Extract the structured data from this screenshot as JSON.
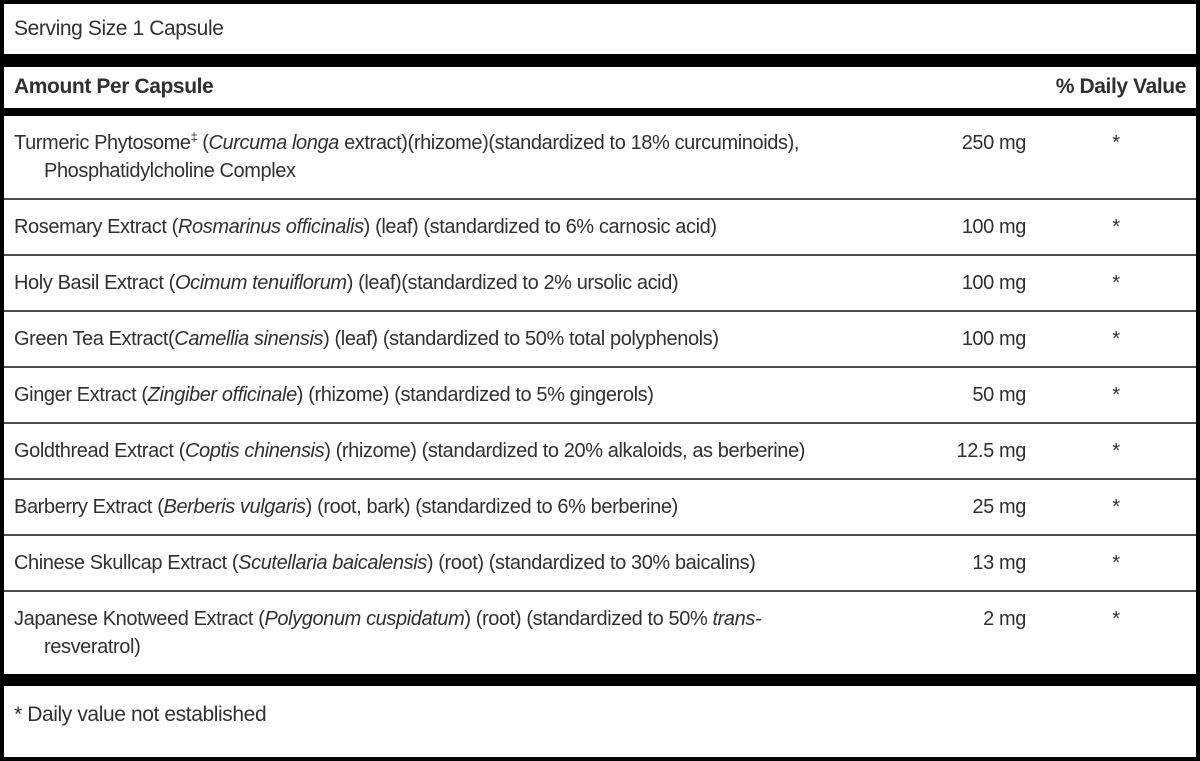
{
  "label": {
    "serving_size": "Serving Size 1 Capsule",
    "header": {
      "amount_col": "Amount Per Capsule",
      "dv_col": "% Daily Value"
    },
    "footnote": "* Daily value not established",
    "colors": {
      "text": "#303030",
      "bar": "#000000",
      "separator": "#4d4d4d"
    },
    "rows": [
      {
        "name_parts": [
          {
            "text": "Turmeric Phytosome"
          },
          {
            "text": "‡",
            "sup": true
          },
          {
            "text": " ("
          },
          {
            "text": "Curcuma longa",
            "italic": true
          },
          {
            "text": " extract)(rhizome)(standardized to 18% curcuminoids),"
          },
          {
            "br": true
          },
          {
            "text": "Phosphatidylcholine Complex"
          }
        ],
        "amount": "250 mg",
        "daily_value": "*"
      },
      {
        "name_parts": [
          {
            "text": "Rosemary Extract ("
          },
          {
            "text": "Rosmarinus officinalis",
            "italic": true
          },
          {
            "text": ") (leaf) (standardized to 6% carnosic acid)"
          }
        ],
        "amount": "100 mg",
        "daily_value": "*"
      },
      {
        "name_parts": [
          {
            "text": "Holy Basil Extract ("
          },
          {
            "text": "Ocimum tenuiflorum",
            "italic": true
          },
          {
            "text": ") (leaf)(standardized to 2% ursolic acid)"
          }
        ],
        "amount": "100 mg",
        "daily_value": "*"
      },
      {
        "name_parts": [
          {
            "text": "Green Tea Extract("
          },
          {
            "text": "Camellia sinensis",
            "italic": true
          },
          {
            "text": ") (leaf) (standardized to 50% total polyphenols)"
          }
        ],
        "amount": "100 mg",
        "daily_value": "*"
      },
      {
        "name_parts": [
          {
            "text": "Ginger Extract ("
          },
          {
            "text": "Zingiber officinale",
            "italic": true
          },
          {
            "text": ") (rhizome) (standardized to 5% gingerols)"
          }
        ],
        "amount": "50 mg",
        "daily_value": "*"
      },
      {
        "name_parts": [
          {
            "text": "Goldthread Extract ("
          },
          {
            "text": "Coptis chinensis",
            "italic": true
          },
          {
            "text": ") (rhizome) (standardized to 20% alkaloids, as berberine)"
          }
        ],
        "amount": "12.5 mg",
        "daily_value": "*"
      },
      {
        "name_parts": [
          {
            "text": "Barberry Extract ("
          },
          {
            "text": "Berberis vulgaris",
            "italic": true
          },
          {
            "text": ") (root, bark) (standardized to 6% berberine)"
          }
        ],
        "amount": "25 mg",
        "daily_value": "*"
      },
      {
        "name_parts": [
          {
            "text": "Chinese Skullcap Extract ("
          },
          {
            "text": "Scutellaria baicalensis",
            "italic": true
          },
          {
            "text": ") (root) (standardized to 30% baicalins)"
          }
        ],
        "amount": "13 mg",
        "daily_value": "*"
      },
      {
        "name_parts": [
          {
            "text": "Japanese Knotweed Extract ("
          },
          {
            "text": "Polygonum cuspidatum",
            "italic": true
          },
          {
            "text": ") (root) (standardized to 50% "
          },
          {
            "text": "trans-",
            "italic": true
          },
          {
            "br": true
          },
          {
            "text": "resveratrol)"
          }
        ],
        "amount": "2 mg",
        "daily_value": "*"
      }
    ]
  }
}
